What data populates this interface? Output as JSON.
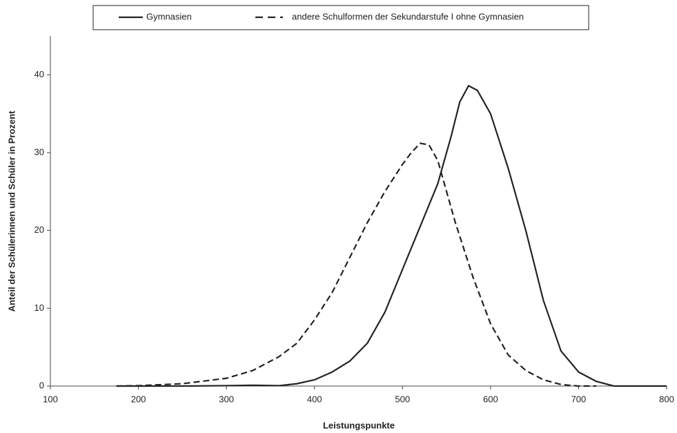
{
  "chart_data": {
    "type": "line",
    "xlabel": "Leistungspunkte",
    "ylabel": "Anteil der Schülerinnen und Schüler in Prozent",
    "xlim": [
      100,
      800
    ],
    "xticks": [
      100,
      200,
      300,
      400,
      500,
      600,
      700,
      800
    ],
    "ylim": [
      0,
      45
    ],
    "yticks": [
      0,
      10,
      20,
      30,
      40
    ],
    "legend": "top",
    "series": [
      {
        "name": "Gymnasien",
        "color": "#222222",
        "dash": false,
        "x": [
          175,
          200,
          250,
          300,
          330,
          360,
          380,
          400,
          420,
          440,
          460,
          480,
          500,
          520,
          540,
          555,
          565,
          575,
          585,
          600,
          620,
          640,
          660,
          680,
          700,
          720,
          740,
          760,
          780,
          800
        ],
        "values": [
          0,
          0,
          0,
          0.05,
          0.1,
          0.05,
          0.3,
          0.8,
          1.8,
          3.2,
          5.5,
          9.5,
          15,
          20.5,
          26,
          32,
          36.5,
          38.6,
          38,
          35,
          28,
          20,
          11,
          4.5,
          1.8,
          0.6,
          0,
          0,
          0,
          0
        ]
      },
      {
        "name": "andere Schulformen der Sekundarstufe I ohne Gymnasien",
        "color": "#222222",
        "dash": true,
        "x": [
          175,
          200,
          250,
          300,
          330,
          360,
          380,
          400,
          420,
          440,
          460,
          480,
          500,
          510,
          520,
          530,
          540,
          550,
          560,
          580,
          600,
          620,
          640,
          660,
          680,
          700,
          720
        ],
        "values": [
          0,
          0.05,
          0.3,
          1,
          2,
          3.8,
          5.5,
          8.5,
          12,
          16.5,
          21,
          25,
          28.5,
          30,
          31.2,
          31,
          29,
          25,
          21,
          14,
          8,
          4,
          2,
          0.8,
          0.2,
          0,
          0
        ]
      }
    ]
  }
}
